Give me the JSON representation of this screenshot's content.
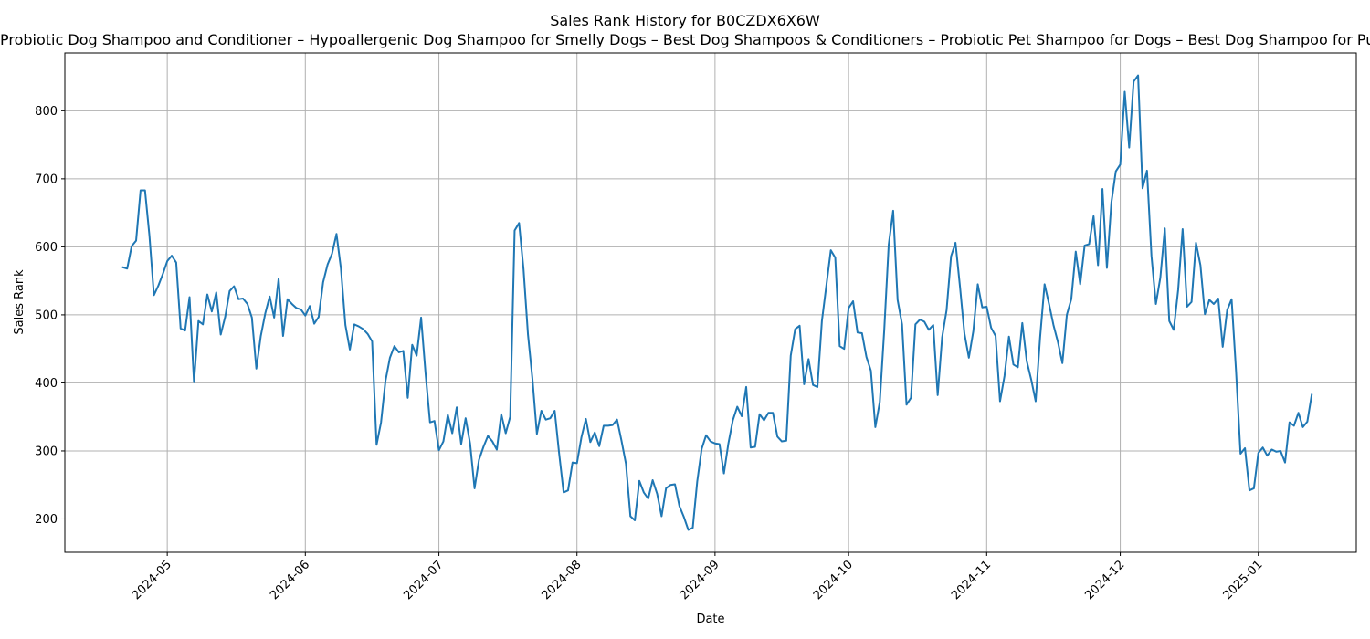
{
  "chart_data": {
    "type": "line",
    "title": "Sales Rank History for B0CZDX6X6W",
    "subtitle": "Probiotic Dog Shampoo and Conditioner – Hypoallergenic Dog Shampoo for Smelly Dogs – Best Dog Shampoos & Conditioners – Probiotic Pet Shampoo for Dogs – Best Dog Shampoo for Puppies",
    "xlabel": "Date",
    "ylabel": "Sales Rank",
    "x_range": [
      "2024-04-08",
      "2025-01-23"
    ],
    "ylim": [
      151,
      885
    ],
    "grid": true,
    "line_color": "#1f77b4",
    "x_ticks": [
      "2024-05",
      "2024-06",
      "2024-07",
      "2024-08",
      "2024-09",
      "2024-10",
      "2024-11",
      "2024-12",
      "2025-01"
    ],
    "y_ticks": [
      200,
      300,
      400,
      500,
      600,
      700,
      800
    ],
    "series": [
      {
        "points": [
          [
            "2024-04-21",
            570
          ],
          [
            "2024-04-22",
            568
          ],
          [
            "2024-04-23",
            601
          ],
          [
            "2024-04-24",
            609
          ],
          [
            "2024-04-25",
            683
          ],
          [
            "2024-04-26",
            683
          ],
          [
            "2024-04-27",
            616
          ],
          [
            "2024-04-28",
            529
          ],
          [
            "2024-04-29",
            543
          ],
          [
            "2024-04-30",
            560
          ],
          [
            "2024-05-01",
            579
          ],
          [
            "2024-05-02",
            587
          ],
          [
            "2024-05-03",
            577
          ],
          [
            "2024-05-04",
            480
          ],
          [
            "2024-05-05",
            477
          ],
          [
            "2024-05-06",
            526
          ],
          [
            "2024-05-07",
            401
          ],
          [
            "2024-05-08",
            491
          ],
          [
            "2024-05-09",
            486
          ],
          [
            "2024-05-10",
            530
          ],
          [
            "2024-05-11",
            505
          ],
          [
            "2024-05-12",
            533
          ],
          [
            "2024-05-13",
            471
          ],
          [
            "2024-05-14",
            497
          ],
          [
            "2024-05-15",
            535
          ],
          [
            "2024-05-16",
            542
          ],
          [
            "2024-05-17",
            523
          ],
          [
            "2024-05-18",
            524
          ],
          [
            "2024-05-19",
            516
          ],
          [
            "2024-05-20",
            496
          ],
          [
            "2024-05-21",
            421
          ],
          [
            "2024-05-22",
            469
          ],
          [
            "2024-05-23",
            502
          ],
          [
            "2024-05-24",
            527
          ],
          [
            "2024-05-25",
            496
          ],
          [
            "2024-05-26",
            553
          ],
          [
            "2024-05-27",
            469
          ],
          [
            "2024-05-28",
            523
          ],
          [
            "2024-05-29",
            516
          ],
          [
            "2024-05-30",
            510
          ],
          [
            "2024-05-31",
            508
          ],
          [
            "2024-06-01",
            499
          ],
          [
            "2024-06-02",
            513
          ],
          [
            "2024-06-03",
            487
          ],
          [
            "2024-06-04",
            497
          ],
          [
            "2024-06-05",
            548
          ],
          [
            "2024-06-06",
            574
          ],
          [
            "2024-06-07",
            590
          ],
          [
            "2024-06-08",
            619
          ],
          [
            "2024-06-09",
            568
          ],
          [
            "2024-06-10",
            485
          ],
          [
            "2024-06-11",
            449
          ],
          [
            "2024-06-12",
            486
          ],
          [
            "2024-06-13",
            483
          ],
          [
            "2024-06-14",
            479
          ],
          [
            "2024-06-15",
            472
          ],
          [
            "2024-06-16",
            461
          ],
          [
            "2024-06-17",
            309
          ],
          [
            "2024-06-18",
            342
          ],
          [
            "2024-06-19",
            403
          ],
          [
            "2024-06-20",
            437
          ],
          [
            "2024-06-21",
            454
          ],
          [
            "2024-06-22",
            445
          ],
          [
            "2024-06-23",
            447
          ],
          [
            "2024-06-24",
            378
          ],
          [
            "2024-06-25",
            456
          ],
          [
            "2024-06-26",
            440
          ],
          [
            "2024-06-27",
            496
          ],
          [
            "2024-06-28",
            414
          ],
          [
            "2024-06-29",
            342
          ],
          [
            "2024-06-30",
            344
          ],
          [
            "2024-07-01",
            301
          ],
          [
            "2024-07-02",
            314
          ],
          [
            "2024-07-03",
            353
          ],
          [
            "2024-07-04",
            326
          ],
          [
            "2024-07-05",
            364
          ],
          [
            "2024-07-06",
            310
          ],
          [
            "2024-07-07",
            348
          ],
          [
            "2024-07-08",
            311
          ],
          [
            "2024-07-09",
            245
          ],
          [
            "2024-07-10",
            287
          ],
          [
            "2024-07-11",
            306
          ],
          [
            "2024-07-12",
            322
          ],
          [
            "2024-07-13",
            314
          ],
          [
            "2024-07-14",
            302
          ],
          [
            "2024-07-15",
            354
          ],
          [
            "2024-07-16",
            326
          ],
          [
            "2024-07-17",
            350
          ],
          [
            "2024-07-18",
            624
          ],
          [
            "2024-07-19",
            635
          ],
          [
            "2024-07-20",
            567
          ],
          [
            "2024-07-21",
            471
          ],
          [
            "2024-07-22",
            406
          ],
          [
            "2024-07-23",
            325
          ],
          [
            "2024-07-24",
            359
          ],
          [
            "2024-07-25",
            346
          ],
          [
            "2024-07-26",
            348
          ],
          [
            "2024-07-27",
            359
          ],
          [
            "2024-07-28",
            296
          ],
          [
            "2024-07-29",
            239
          ],
          [
            "2024-07-30",
            242
          ],
          [
            "2024-07-31",
            283
          ],
          [
            "2024-08-01",
            282
          ],
          [
            "2024-08-02",
            320
          ],
          [
            "2024-08-03",
            347
          ],
          [
            "2024-08-04",
            313
          ],
          [
            "2024-08-05",
            327
          ],
          [
            "2024-08-06",
            307
          ],
          [
            "2024-08-07",
            337
          ],
          [
            "2024-08-08",
            337
          ],
          [
            "2024-08-09",
            338
          ],
          [
            "2024-08-10",
            346
          ],
          [
            "2024-08-11",
            315
          ],
          [
            "2024-08-12",
            281
          ],
          [
            "2024-08-13",
            204
          ],
          [
            "2024-08-14",
            198
          ],
          [
            "2024-08-15",
            256
          ],
          [
            "2024-08-16",
            239
          ],
          [
            "2024-08-17",
            230
          ],
          [
            "2024-08-18",
            257
          ],
          [
            "2024-08-19",
            237
          ],
          [
            "2024-08-20",
            204
          ],
          [
            "2024-08-21",
            245
          ],
          [
            "2024-08-22",
            250
          ],
          [
            "2024-08-23",
            251
          ],
          [
            "2024-08-24",
            219
          ],
          [
            "2024-08-25",
            203
          ],
          [
            "2024-08-26",
            184
          ],
          [
            "2024-08-27",
            187
          ],
          [
            "2024-08-28",
            255
          ],
          [
            "2024-08-29",
            303
          ],
          [
            "2024-08-30",
            323
          ],
          [
            "2024-08-31",
            314
          ],
          [
            "2024-09-01",
            311
          ],
          [
            "2024-09-02",
            310
          ],
          [
            "2024-09-03",
            267
          ],
          [
            "2024-09-04",
            311
          ],
          [
            "2024-09-05",
            345
          ],
          [
            "2024-09-06",
            365
          ],
          [
            "2024-09-07",
            351
          ],
          [
            "2024-09-08",
            394
          ],
          [
            "2024-09-09",
            305
          ],
          [
            "2024-09-10",
            306
          ],
          [
            "2024-09-11",
            354
          ],
          [
            "2024-09-12",
            345
          ],
          [
            "2024-09-13",
            356
          ],
          [
            "2024-09-14",
            356
          ],
          [
            "2024-09-15",
            321
          ],
          [
            "2024-09-16",
            314
          ],
          [
            "2024-09-17",
            315
          ],
          [
            "2024-09-18",
            440
          ],
          [
            "2024-09-19",
            479
          ],
          [
            "2024-09-20",
            484
          ],
          [
            "2024-09-21",
            398
          ],
          [
            "2024-09-22",
            435
          ],
          [
            "2024-09-23",
            397
          ],
          [
            "2024-09-24",
            394
          ],
          [
            "2024-09-25",
            491
          ],
          [
            "2024-09-26",
            543
          ],
          [
            "2024-09-27",
            595
          ],
          [
            "2024-09-28",
            584
          ],
          [
            "2024-09-29",
            454
          ],
          [
            "2024-09-30",
            450
          ],
          [
            "2024-10-01",
            510
          ],
          [
            "2024-10-02",
            520
          ],
          [
            "2024-10-03",
            474
          ],
          [
            "2024-10-04",
            473
          ],
          [
            "2024-10-05",
            438
          ],
          [
            "2024-10-06",
            418
          ],
          [
            "2024-10-07",
            335
          ],
          [
            "2024-10-08",
            372
          ],
          [
            "2024-10-09",
            478
          ],
          [
            "2024-10-10",
            603
          ],
          [
            "2024-10-11",
            653
          ],
          [
            "2024-10-12",
            522
          ],
          [
            "2024-10-13",
            486
          ],
          [
            "2024-10-14",
            368
          ],
          [
            "2024-10-15",
            378
          ],
          [
            "2024-10-16",
            486
          ],
          [
            "2024-10-17",
            493
          ],
          [
            "2024-10-18",
            490
          ],
          [
            "2024-10-19",
            478
          ],
          [
            "2024-10-20",
            485
          ],
          [
            "2024-10-21",
            382
          ],
          [
            "2024-10-22",
            467
          ],
          [
            "2024-10-23",
            507
          ],
          [
            "2024-10-24",
            586
          ],
          [
            "2024-10-25",
            606
          ],
          [
            "2024-10-26",
            542
          ],
          [
            "2024-10-27",
            473
          ],
          [
            "2024-10-28",
            437
          ],
          [
            "2024-10-29",
            476
          ],
          [
            "2024-10-30",
            545
          ],
          [
            "2024-10-31",
            511
          ],
          [
            "2024-11-01",
            512
          ],
          [
            "2024-11-02",
            481
          ],
          [
            "2024-11-03",
            469
          ],
          [
            "2024-11-04",
            373
          ],
          [
            "2024-11-05",
            410
          ],
          [
            "2024-11-06",
            468
          ],
          [
            "2024-11-07",
            427
          ],
          [
            "2024-11-08",
            423
          ],
          [
            "2024-11-09",
            488
          ],
          [
            "2024-11-10",
            432
          ],
          [
            "2024-11-11",
            405
          ],
          [
            "2024-11-12",
            373
          ],
          [
            "2024-11-13",
            467
          ],
          [
            "2024-11-14",
            545
          ],
          [
            "2024-11-15",
            516
          ],
          [
            "2024-11-16",
            485
          ],
          [
            "2024-11-17",
            460
          ],
          [
            "2024-11-18",
            429
          ],
          [
            "2024-11-19",
            500
          ],
          [
            "2024-11-20",
            523
          ],
          [
            "2024-11-21",
            593
          ],
          [
            "2024-11-22",
            545
          ],
          [
            "2024-11-23",
            602
          ],
          [
            "2024-11-24",
            604
          ],
          [
            "2024-11-25",
            645
          ],
          [
            "2024-11-26",
            573
          ],
          [
            "2024-11-27",
            685
          ],
          [
            "2024-11-28",
            569
          ],
          [
            "2024-11-29",
            665
          ],
          [
            "2024-11-30",
            711
          ],
          [
            "2024-12-01",
            721
          ],
          [
            "2024-12-02",
            828
          ],
          [
            "2024-12-03",
            746
          ],
          [
            "2024-12-04",
            843
          ],
          [
            "2024-12-05",
            852
          ],
          [
            "2024-12-06",
            686
          ],
          [
            "2024-12-07",
            712
          ],
          [
            "2024-12-08",
            587
          ],
          [
            "2024-12-09",
            516
          ],
          [
            "2024-12-10",
            555
          ],
          [
            "2024-12-11",
            627
          ],
          [
            "2024-12-12",
            491
          ],
          [
            "2024-12-13",
            478
          ],
          [
            "2024-12-14",
            537
          ],
          [
            "2024-12-15",
            626
          ],
          [
            "2024-12-16",
            512
          ],
          [
            "2024-12-17",
            519
          ],
          [
            "2024-12-18",
            606
          ],
          [
            "2024-12-19",
            573
          ],
          [
            "2024-12-20",
            501
          ],
          [
            "2024-12-21",
            522
          ],
          [
            "2024-12-22",
            516
          ],
          [
            "2024-12-23",
            524
          ],
          [
            "2024-12-24",
            453
          ],
          [
            "2024-12-25",
            507
          ],
          [
            "2024-12-26",
            523
          ],
          [
            "2024-12-27",
            417
          ],
          [
            "2024-12-28",
            296
          ],
          [
            "2024-12-29",
            304
          ],
          [
            "2024-12-30",
            242
          ],
          [
            "2024-12-31",
            245
          ],
          [
            "2025-01-01",
            297
          ],
          [
            "2025-01-02",
            305
          ],
          [
            "2025-01-03",
            293
          ],
          [
            "2025-01-04",
            302
          ],
          [
            "2025-01-05",
            299
          ],
          [
            "2025-01-06",
            300
          ],
          [
            "2025-01-07",
            283
          ],
          [
            "2025-01-08",
            342
          ],
          [
            "2025-01-09",
            337
          ],
          [
            "2025-01-10",
            356
          ],
          [
            "2025-01-11",
            335
          ],
          [
            "2025-01-12",
            343
          ],
          [
            "2025-01-13",
            383
          ]
        ]
      }
    ]
  }
}
